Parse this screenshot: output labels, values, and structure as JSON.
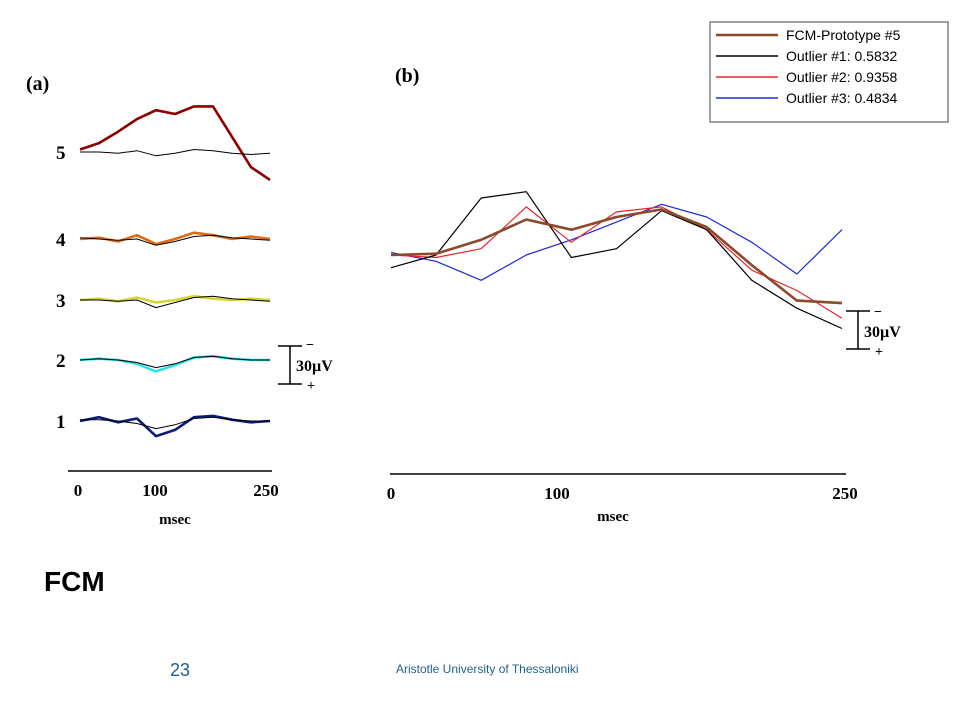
{
  "slide": {
    "title": "FCM",
    "number": "23",
    "footer": "Aristotle University of Thessaloniki"
  },
  "chart_data": [
    {
      "type": "line",
      "panel_label": "(a)",
      "xlabel": "msec",
      "xlim": [
        0,
        250
      ],
      "x_ticks": [
        "0",
        "100",
        "250"
      ],
      "scale_bar": {
        "label": "30µV",
        "top_sign": "−",
        "bottom_sign": "+"
      },
      "rows": [
        {
          "label": "5",
          "series": [
            {
              "role": "prototype",
              "color": "#000000",
              "x": [
                0,
                25,
                50,
                75,
                100,
                125,
                150,
                175,
                200,
                225,
                250
              ],
              "y": [
                0,
                0,
                -1,
                1,
                -3,
                -1,
                2,
                1,
                -1,
                -2,
                -1
              ]
            },
            {
              "role": "trial",
              "color": "#8b0000",
              "x": [
                0,
                25,
                50,
                75,
                100,
                125,
                150,
                175,
                200,
                225,
                250
              ],
              "y": [
                2,
                7,
                16,
                26,
                33,
                30,
                36,
                36,
                12,
                -12,
                -22
              ]
            }
          ]
        },
        {
          "label": "4",
          "series": [
            {
              "role": "prototype",
              "color": "#000000",
              "x": [
                0,
                25,
                50,
                75,
                100,
                125,
                150,
                175,
                200,
                225,
                250
              ],
              "y": [
                1,
                0,
                -1,
                0,
                -5,
                -2,
                2,
                3,
                1,
                0,
                -1
              ]
            },
            {
              "role": "trial",
              "color": "#e06b12",
              "x": [
                0,
                25,
                50,
                75,
                100,
                125,
                150,
                175,
                200,
                225,
                250
              ],
              "y": [
                0,
                1,
                -2,
                3,
                -4,
                0,
                5,
                3,
                0,
                2,
                0
              ]
            }
          ]
        },
        {
          "label": "3",
          "series": [
            {
              "role": "prototype",
              "color": "#000000",
              "x": [
                0,
                25,
                50,
                75,
                100,
                125,
                150,
                175,
                200,
                225,
                250
              ],
              "y": [
                0,
                0,
                -1,
                0,
                -6,
                -2,
                2,
                3,
                1,
                0,
                -1
              ]
            },
            {
              "role": "trial",
              "color": "#d6d633",
              "x": [
                0,
                25,
                50,
                75,
                100,
                125,
                150,
                175,
                200,
                225,
                250
              ],
              "y": [
                0,
                1,
                -1,
                2,
                -2,
                0,
                3,
                1,
                0,
                1,
                0
              ]
            }
          ]
        },
        {
          "label": "2",
          "series": [
            {
              "role": "prototype",
              "color": "#000000",
              "x": [
                0,
                25,
                50,
                75,
                100,
                125,
                150,
                175,
                200,
                225,
                250
              ],
              "y": [
                0,
                1,
                0,
                -2,
                -6,
                -3,
                2,
                3,
                1,
                0,
                0
              ]
            },
            {
              "role": "trial",
              "color": "#2ee0e8",
              "x": [
                0,
                25,
                50,
                75,
                100,
                125,
                150,
                175,
                200,
                225,
                250
              ],
              "y": [
                0,
                1,
                0,
                -3,
                -9,
                -4,
                2,
                3,
                1,
                0,
                0
              ]
            }
          ]
        },
        {
          "label": "1",
          "series": [
            {
              "role": "prototype",
              "color": "#000000",
              "x": [
                0,
                25,
                50,
                75,
                100,
                125,
                150,
                175,
                200,
                225,
                250
              ],
              "y": [
                1,
                1,
                0,
                -2,
                -6,
                -3,
                2,
                3,
                1,
                0,
                0
              ]
            },
            {
              "role": "trial",
              "color": "#0a1a7a",
              "x": [
                0,
                25,
                50,
                75,
                100,
                125,
                150,
                175,
                200,
                225,
                250
              ],
              "y": [
                0,
                3,
                -1,
                2,
                -12,
                -7,
                3,
                4,
                1,
                -1,
                0
              ]
            }
          ]
        }
      ]
    },
    {
      "type": "line",
      "panel_label": "(b)",
      "xlabel": "msec",
      "xlim": [
        0,
        250
      ],
      "x_ticks": [
        "0",
        "100",
        "250"
      ],
      "scale_bar": {
        "label": "30µV",
        "top_sign": "−",
        "bottom_sign": "+"
      },
      "series": [
        {
          "name": "FCM-Prototype #5",
          "color": "#8b4a2b",
          "x": [
            0,
            25,
            50,
            75,
            100,
            125,
            150,
            175,
            200,
            225,
            250
          ],
          "y": [
            0,
            1,
            12,
            28,
            20,
            30,
            36,
            22,
            -8,
            -36,
            -38
          ]
        },
        {
          "name": "Outlier #1: 0.5832",
          "color": "#000000",
          "x": [
            0,
            25,
            50,
            75,
            100,
            125,
            150,
            175,
            200,
            225,
            250
          ],
          "y": [
            -10,
            0,
            45,
            50,
            -2,
            5,
            35,
            20,
            -20,
            -42,
            -58
          ]
        },
        {
          "name": "Outlier #2: 0.9358",
          "color": "#e8262b",
          "x": [
            0,
            25,
            50,
            75,
            100,
            125,
            150,
            175,
            200,
            225,
            250
          ],
          "y": [
            0,
            -2,
            5,
            38,
            10,
            34,
            38,
            20,
            -12,
            -28,
            -50
          ]
        },
        {
          "name": "Outlier #3: 0.4834",
          "color": "#1a2bd6",
          "x": [
            0,
            25,
            50,
            75,
            100,
            125,
            150,
            175,
            200,
            225,
            250
          ],
          "y": [
            2,
            -5,
            -20,
            0,
            12,
            26,
            40,
            30,
            10,
            -15,
            20
          ]
        }
      ]
    }
  ]
}
